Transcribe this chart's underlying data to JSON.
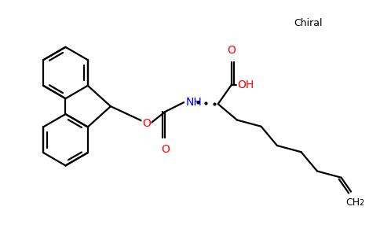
{
  "bg": "#ffffff",
  "lc": "#000000",
  "rc": "#ff0000",
  "bc": "#0000ff",
  "lw": 1.6,
  "figsize": [
    4.84,
    3.0
  ],
  "dpi": 100,
  "chiral_text": "Chiral",
  "oh_text": "OH",
  "o_text": "O",
  "nh_text": "NH",
  "ch2_text": "CH",
  "ch2_sub": "2"
}
